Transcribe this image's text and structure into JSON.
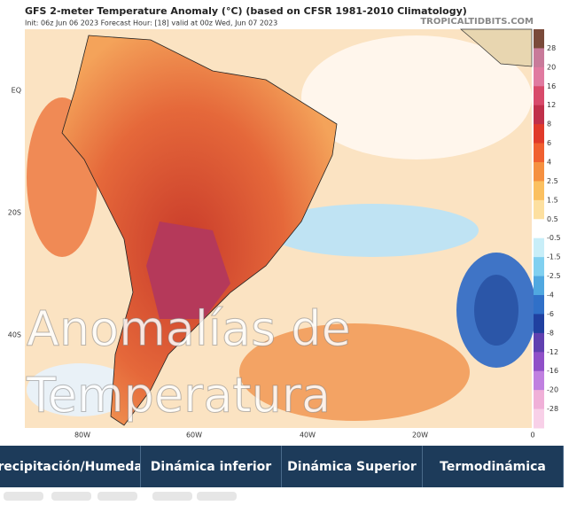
{
  "header": {
    "title": "GFS 2-meter Temperature Anomaly (°C) (based on CFSR 1981-2010 Climatology)",
    "info": "Init: 06z Jun 06 2023   Forecast Hour: [18]   valid at 00z Wed, Jun 07 2023",
    "site": "TROPICALTIDBITS.COM"
  },
  "map": {
    "lat_labels": [
      "EQ",
      "20S",
      "40S"
    ],
    "lon_labels": [
      "80W",
      "60W",
      "40W",
      "20W",
      "0"
    ],
    "colorbar_labels": [
      "28",
      "20",
      "16",
      "12",
      "8",
      "6",
      "4",
      "2.5",
      "1.5",
      "0.5",
      "-0.5",
      "-1.5",
      "-2.5",
      "-4",
      "-6",
      "-8",
      "-12",
      "-16",
      "-20",
      "-28"
    ],
    "overlay": [
      "Anomalías de",
      "Temperatura"
    ]
  },
  "tabs": [
    "Precipitación/Humedad",
    "Dinámica inferior",
    "Dinámica Superior",
    "Termodinámica"
  ]
}
